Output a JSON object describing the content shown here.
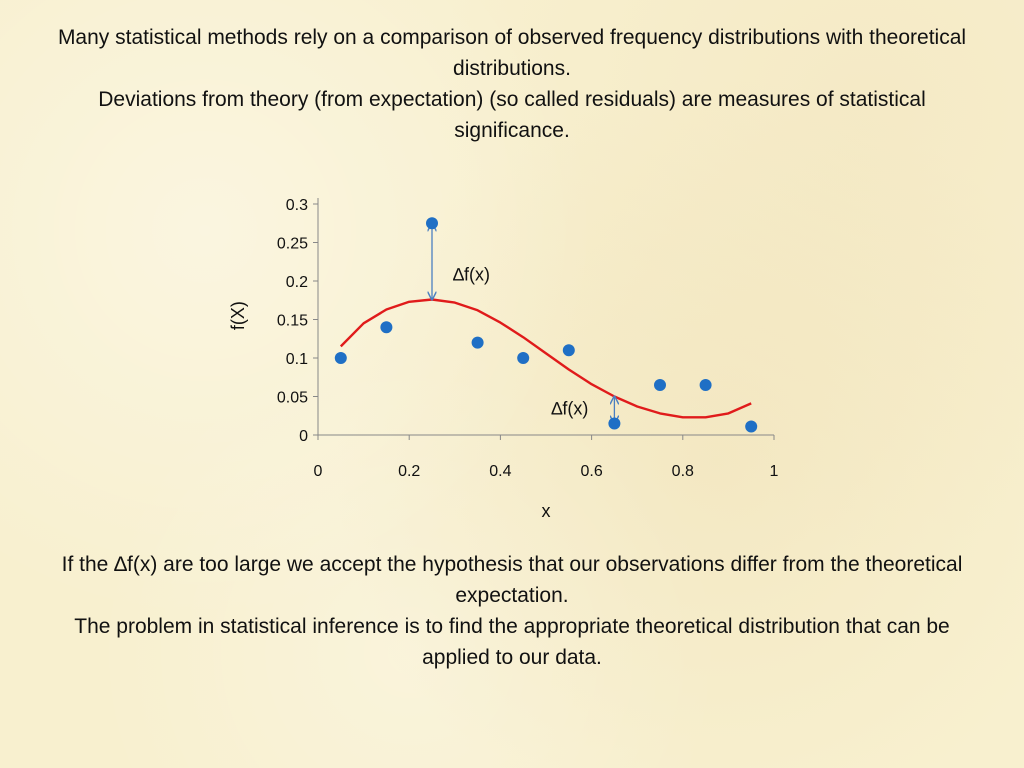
{
  "intro": {
    "line1": "Many statistical methods rely on a comparison of observed frequency distributions with theoretical distributions.",
    "line2": "Deviations from theory (from expectation) (so called residuals) are measures of statistical significance."
  },
  "conclusion": {
    "line1": "If the ∆f(x) are too large we accept the hypothesis that our observations differ from the theoretical expectation.",
    "line2": "The problem in statistical inference is to find the appropriate theoretical distribution that can be applied to our data."
  },
  "chart_data": {
    "type": "scatter",
    "xlabel": "x",
    "ylabel": "f(X)",
    "xlim": [
      0,
      1
    ],
    "ylim": [
      0,
      0.3
    ],
    "xticks": [
      "0",
      "0.2",
      "0.4",
      "0.6",
      "0.8",
      "1"
    ],
    "yticks": [
      "0",
      "0.05",
      "0.1",
      "0.15",
      "0.2",
      "0.25",
      "0.3"
    ],
    "grid": false,
    "colors": {
      "points": "#1f6fc5",
      "curve": "#e01b1b",
      "arrow": "#4a7fc1"
    },
    "points": [
      {
        "x": 0.05,
        "y": 0.1
      },
      {
        "x": 0.15,
        "y": 0.14
      },
      {
        "x": 0.25,
        "y": 0.275
      },
      {
        "x": 0.35,
        "y": 0.12
      },
      {
        "x": 0.45,
        "y": 0.1
      },
      {
        "x": 0.55,
        "y": 0.11
      },
      {
        "x": 0.65,
        "y": 0.015
      },
      {
        "x": 0.75,
        "y": 0.065
      },
      {
        "x": 0.85,
        "y": 0.065
      },
      {
        "x": 0.95,
        "y": 0.011
      }
    ],
    "curve": [
      {
        "x": 0.05,
        "y": 0.115
      },
      {
        "x": 0.1,
        "y": 0.145
      },
      {
        "x": 0.15,
        "y": 0.163
      },
      {
        "x": 0.2,
        "y": 0.173
      },
      {
        "x": 0.25,
        "y": 0.176
      },
      {
        "x": 0.3,
        "y": 0.172
      },
      {
        "x": 0.35,
        "y": 0.162
      },
      {
        "x": 0.4,
        "y": 0.146
      },
      {
        "x": 0.45,
        "y": 0.127
      },
      {
        "x": 0.5,
        "y": 0.106
      },
      {
        "x": 0.55,
        "y": 0.085
      },
      {
        "x": 0.6,
        "y": 0.066
      },
      {
        "x": 0.65,
        "y": 0.05
      },
      {
        "x": 0.7,
        "y": 0.037
      },
      {
        "x": 0.75,
        "y": 0.028
      },
      {
        "x": 0.8,
        "y": 0.023
      },
      {
        "x": 0.85,
        "y": 0.023
      },
      {
        "x": 0.9,
        "y": 0.028
      },
      {
        "x": 0.95,
        "y": 0.041
      }
    ],
    "annotations": [
      {
        "label": "∆f(x)",
        "x": 0.25,
        "y_from": 0.176,
        "y_to": 0.275
      },
      {
        "label": "∆f(x)",
        "x": 0.65,
        "y_from": 0.05,
        "y_to": 0.015
      }
    ]
  }
}
